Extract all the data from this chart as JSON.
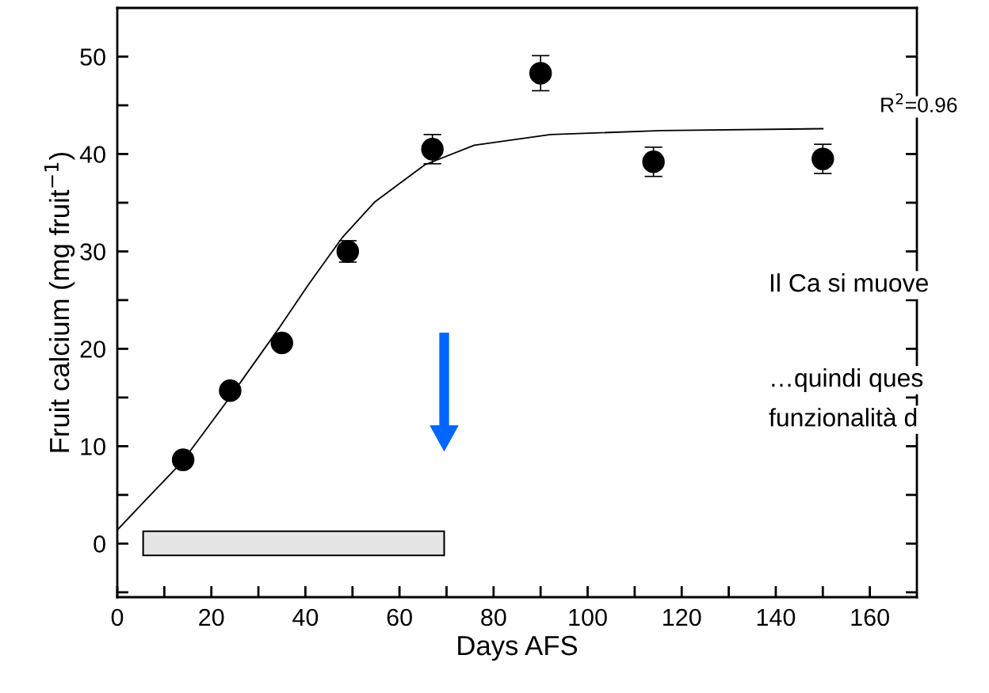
{
  "chart_data": {
    "type": "scatter",
    "xlabel": "Days AFS",
    "ylabel": "Fruit calcium (mg fruit$^{−1}$)",
    "xlim": [
      0,
      170
    ],
    "ylim": [
      -5.5,
      55
    ],
    "xticks": [
      0,
      {
        "value": 10,
        "label": null
      },
      20,
      {
        "value": 30,
        "label": null
      },
      40,
      {
        "value": 50,
        "label": null
      },
      60,
      {
        "value": 70,
        "label": null
      },
      80,
      {
        "value": 90,
        "label": null
      },
      100,
      {
        "value": 110,
        "label": null
      },
      120,
      {
        "value": 130,
        "label": null
      },
      140,
      {
        "value": 150,
        "label": null
      },
      160
    ],
    "yticks": [
      {
        "value": -5,
        "label": null
      },
      0,
      {
        "value": 5,
        "label": null
      },
      10,
      {
        "value": 15,
        "label": null
      },
      20,
      {
        "value": 25,
        "label": null
      },
      30,
      {
        "value": 35,
        "label": null
      },
      40,
      {
        "value": 45,
        "label": null
      },
      50
    ],
    "marker": "circle",
    "grid": false,
    "legend": false,
    "series": [
      {
        "color": "#000000",
        "x": [
          14,
          24,
          35,
          49,
          67,
          90,
          114,
          150
        ],
        "values": [
          8.6,
          15.7,
          20.6,
          30.0,
          40.5,
          48.3,
          39.2,
          39.5
        ],
        "errors": [
          null,
          null,
          null,
          1.1,
          1.5,
          1.8,
          1.5,
          1.5
        ]
      },
      {
        "type": "line",
        "color": "#000000",
        "marker": "none",
        "x": [
          0,
          5.7,
          13.8,
          23.6,
          34.5,
          40.8,
          47.8,
          54.8,
          65.4,
          75.9,
          92.1,
          115.7,
          150
        ],
        "values": [
          1.4,
          4.3,
          8.4,
          14.8,
          22.2,
          26.7,
          31.4,
          35.1,
          38.9,
          40.9,
          42.0,
          42.4,
          42.6
        ]
      }
    ],
    "bands": [
      {
        "axis": "x",
        "from": 5.5,
        "to": 69.5,
        "color": "#e5e5e5"
      }
    ],
    "annotations": [
      "R$^{2}$=0.96",
      "Il Ca si muove",
      "…quindi ques",
      "funzionalità d"
    ]
  }
}
